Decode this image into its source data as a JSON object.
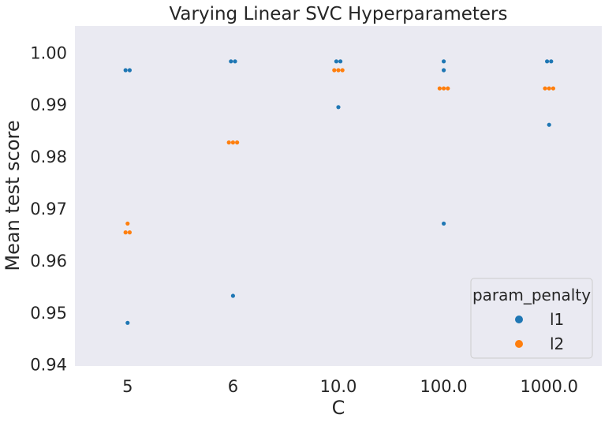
{
  "colors": {
    "background": "#eaeaf2",
    "l1": "#1f77b4",
    "l2": "#ff7f0e"
  },
  "chart_data": {
    "type": "scatter",
    "title": "Varying Linear SVC Hyperparameters",
    "xlabel": "C",
    "ylabel": "Mean test score",
    "categories": [
      "5",
      "6",
      "10.0",
      "100.0",
      "1000.0"
    ],
    "yticks": [
      "0.94",
      "0.95",
      "0.96",
      "0.97",
      "0.98",
      "0.99",
      "1.00"
    ],
    "ylim": [
      0.9398,
      1.0052
    ],
    "grid": false,
    "legend": {
      "title": "param_penalty",
      "placement": "lower right",
      "entries": [
        "l1",
        "l2"
      ]
    },
    "series": [
      {
        "name": "l1",
        "color": "#1f77b4",
        "points": [
          {
            "x": "5",
            "y": 0.9967
          },
          {
            "x": "5",
            "y": 0.9967
          },
          {
            "x": "5",
            "y": 0.9481
          },
          {
            "x": "6",
            "y": 0.9984
          },
          {
            "x": "6",
            "y": 0.9984
          },
          {
            "x": "6",
            "y": 0.9533
          },
          {
            "x": "10.0",
            "y": 0.9984
          },
          {
            "x": "10.0",
            "y": 0.9984
          },
          {
            "x": "10.0",
            "y": 0.9896
          },
          {
            "x": "100.0",
            "y": 0.9984
          },
          {
            "x": "100.0",
            "y": 0.9967
          },
          {
            "x": "100.0",
            "y": 0.9672
          },
          {
            "x": "1000.0",
            "y": 0.9984
          },
          {
            "x": "1000.0",
            "y": 0.9984
          },
          {
            "x": "1000.0",
            "y": 0.9862
          }
        ]
      },
      {
        "name": "l2",
        "color": "#ff7f0e",
        "points": [
          {
            "x": "5",
            "y": 0.9655
          },
          {
            "x": "5",
            "y": 0.9655
          },
          {
            "x": "5",
            "y": 0.9672
          },
          {
            "x": "6",
            "y": 0.9828
          },
          {
            "x": "6",
            "y": 0.9828
          },
          {
            "x": "6",
            "y": 0.9828
          },
          {
            "x": "10.0",
            "y": 0.9967
          },
          {
            "x": "10.0",
            "y": 0.9967
          },
          {
            "x": "10.0",
            "y": 0.9967
          },
          {
            "x": "100.0",
            "y": 0.9932
          },
          {
            "x": "100.0",
            "y": 0.9932
          },
          {
            "x": "100.0",
            "y": 0.9932
          },
          {
            "x": "1000.0",
            "y": 0.9932
          },
          {
            "x": "1000.0",
            "y": 0.9932
          },
          {
            "x": "1000.0",
            "y": 0.9932
          }
        ]
      }
    ]
  }
}
